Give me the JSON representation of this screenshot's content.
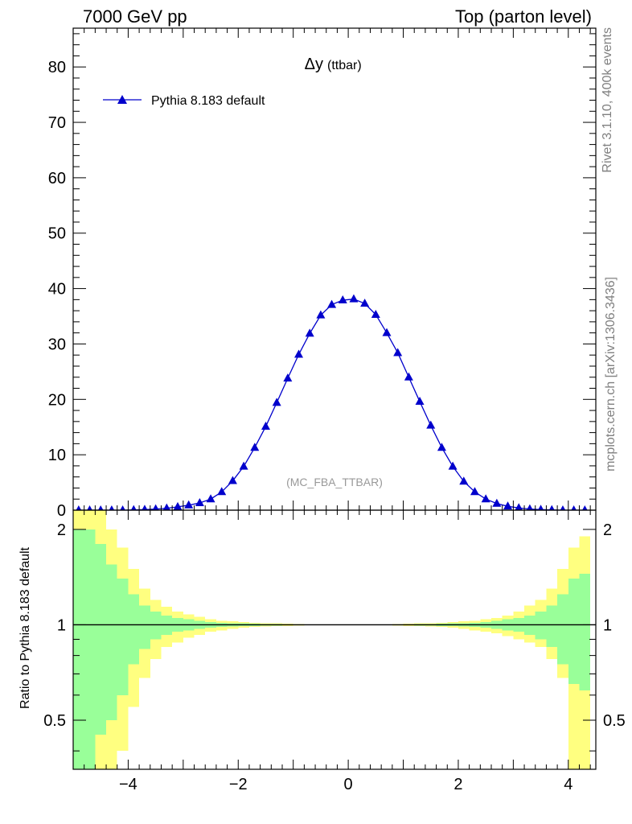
{
  "header": {
    "energy_label": "7000 GeV pp",
    "process_label": "Top (parton level)"
  },
  "side": {
    "rivet_label": "Rivet 3.1.10,  400k events",
    "mcplots_label": "mcplots.cern.ch [arXiv:1306.3436]"
  },
  "chart_data": [
    {
      "type": "line",
      "title": "Δy",
      "title_suffix": "(ttbar)",
      "watermark": "(MC_FBA_TTBAR)",
      "xlabel": "",
      "ylabel": "",
      "xlim": [
        -5.0,
        4.5
      ],
      "ylim": [
        0,
        87
      ],
      "yticks": [
        "0",
        "10",
        "20",
        "30",
        "40",
        "50",
        "60",
        "70",
        "80"
      ],
      "xticks": [
        "−4",
        "−2",
        "0",
        "2",
        "4"
      ],
      "legend": "top-left",
      "series": [
        {
          "name": "Pythia 8.183 default",
          "color": "#0000cc",
          "marker": "triangle-up",
          "x": [
            -4.9,
            -4.7,
            -4.5,
            -4.3,
            -4.1,
            -3.9,
            -3.7,
            -3.5,
            -3.3,
            -3.1,
            -2.9,
            -2.7,
            -2.5,
            -2.3,
            -2.1,
            -1.9,
            -1.7,
            -1.5,
            -1.3,
            -1.1,
            -0.9,
            -0.7,
            -0.5,
            -0.3,
            -0.1,
            0.1,
            0.3,
            0.5,
            0.7,
            0.9,
            1.1,
            1.3,
            1.5,
            1.7,
            1.9,
            2.1,
            2.3,
            2.5,
            2.7,
            2.9,
            3.1,
            3.3,
            3.5,
            3.7,
            3.9,
            4.1,
            4.3
          ],
          "y": [
            0.0,
            0.0,
            0.0,
            0.0,
            0.0,
            0.05,
            0.1,
            0.2,
            0.35,
            0.6,
            0.9,
            1.3,
            2.0,
            3.3,
            5.3,
            7.9,
            11.3,
            15.1,
            19.4,
            23.8,
            28.1,
            31.9,
            35.2,
            37.1,
            37.9,
            38.1,
            37.3,
            35.3,
            32.0,
            28.4,
            24.0,
            19.6,
            15.3,
            11.3,
            7.9,
            5.2,
            3.3,
            2.0,
            1.2,
            0.7,
            0.4,
            0.2,
            0.1,
            0.05,
            0.0,
            0.0,
            0.0
          ]
        }
      ]
    },
    {
      "type": "area",
      "title": "",
      "xlabel": "",
      "ylabel": "Ratio to Pythia 8.183 default",
      "yscale": "log",
      "xlim": [
        -5.0,
        4.5
      ],
      "ylim": [
        0.35,
        2.3
      ],
      "yticks": [
        "0.5",
        "1",
        "2"
      ],
      "xticks": [
        "−4",
        "−2",
        "0",
        "2",
        "4"
      ],
      "reference_line": 1,
      "bin_edges": [
        -5.0,
        -4.8,
        -4.6,
        -4.4,
        -4.2,
        -4.0,
        -3.8,
        -3.6,
        -3.4,
        -3.2,
        -3.0,
        -2.8,
        -2.6,
        -2.4,
        -2.2,
        -2.0,
        -1.8,
        -1.6,
        -1.4,
        -1.2,
        -1.0,
        -0.8,
        -0.6,
        -0.4,
        -0.2,
        0.0,
        0.2,
        0.4,
        0.6,
        0.8,
        1.0,
        1.2,
        1.4,
        1.6,
        1.8,
        2.0,
        2.2,
        2.4,
        2.6,
        2.8,
        3.0,
        3.2,
        3.4,
        3.6,
        3.8,
        4.0,
        4.2,
        4.4
      ],
      "series": [
        {
          "name": "inner band",
          "color": "#99ff99",
          "upper": [
            2.0,
            2.0,
            1.8,
            1.55,
            1.4,
            1.25,
            1.15,
            1.1,
            1.07,
            1.05,
            1.04,
            1.03,
            1.02,
            1.015,
            1.012,
            1.01,
            1.008,
            1.006,
            1.005,
            1.004,
            1.003,
            1.002,
            1.002,
            1.001,
            1.001,
            1.001,
            1.001,
            1.002,
            1.002,
            1.003,
            1.004,
            1.005,
            1.006,
            1.008,
            1.01,
            1.012,
            1.015,
            1.02,
            1.03,
            1.04,
            1.05,
            1.07,
            1.1,
            1.15,
            1.25,
            1.4,
            1.45
          ],
          "lower": [
            0.3,
            0.3,
            0.45,
            0.5,
            0.6,
            0.75,
            0.84,
            0.9,
            0.93,
            0.95,
            0.96,
            0.97,
            0.98,
            0.985,
            0.988,
            0.99,
            0.992,
            0.994,
            0.995,
            0.996,
            0.997,
            0.998,
            0.998,
            0.999,
            0.999,
            0.999,
            0.999,
            0.998,
            0.998,
            0.997,
            0.996,
            0.995,
            0.994,
            0.992,
            0.99,
            0.988,
            0.985,
            0.98,
            0.97,
            0.96,
            0.95,
            0.93,
            0.9,
            0.85,
            0.75,
            0.65,
            0.62
          ]
        },
        {
          "name": "outer band",
          "color": "#ffff80",
          "upper": [
            2.3,
            2.3,
            2.3,
            2.0,
            1.75,
            1.5,
            1.3,
            1.2,
            1.14,
            1.1,
            1.08,
            1.06,
            1.04,
            1.03,
            1.025,
            1.02,
            1.015,
            1.012,
            1.01,
            1.008,
            1.006,
            1.004,
            1.003,
            1.002,
            1.002,
            1.002,
            1.002,
            1.003,
            1.004,
            1.006,
            1.008,
            1.01,
            1.012,
            1.015,
            1.02,
            1.025,
            1.03,
            1.04,
            1.05,
            1.07,
            1.1,
            1.15,
            1.2,
            1.3,
            1.5,
            1.75,
            1.9
          ],
          "lower": [
            0.3,
            0.3,
            0.3,
            0.3,
            0.4,
            0.55,
            0.68,
            0.78,
            0.85,
            0.88,
            0.91,
            0.93,
            0.95,
            0.96,
            0.97,
            0.98,
            0.985,
            0.988,
            0.99,
            0.992,
            0.994,
            0.996,
            0.997,
            0.998,
            0.998,
            0.998,
            0.998,
            0.997,
            0.996,
            0.994,
            0.992,
            0.99,
            0.988,
            0.985,
            0.98,
            0.97,
            0.96,
            0.95,
            0.94,
            0.92,
            0.9,
            0.88,
            0.85,
            0.78,
            0.68,
            0.3,
            0.3
          ]
        }
      ]
    }
  ]
}
